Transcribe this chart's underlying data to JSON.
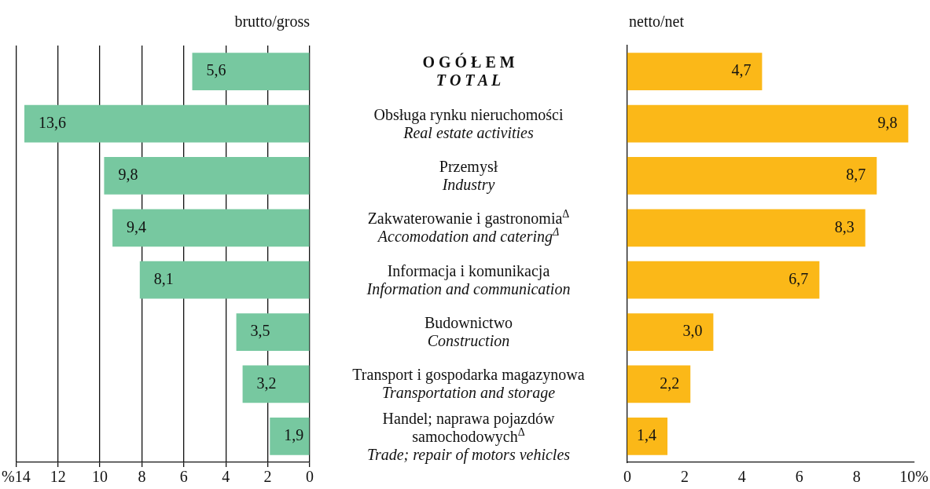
{
  "chart_data": [
    {
      "type": "bar",
      "orientation": "horizontal",
      "xlabel": "brutto/gross",
      "grid": "x",
      "color": "#77c8a0",
      "categories": [
        "O G Ó Ł E M\nT O T A L",
        "Obsługa rynku nieruchomości\nReal estate activities",
        "Przemysł\nIndustry",
        "Zakwaterowanie i gastronomia$^{Δ}$\nAccomodation and catering$^{Δ}$",
        "Informacja i komunikacja\nInformation and communication",
        "Budownictwo\nConstruction",
        "Transport i gospodarka magazynowa\nTransportation and storage",
        "Handel; naprawa pojazdów\nsamochodowych$^{Δ}$\nTrade; repair of motors vehicles"
      ],
      "values": [
        5.6,
        13.6,
        9.8,
        9.4,
        8.1,
        3.5,
        3.2,
        1.9
      ],
      "value_labels": [
        "5,6",
        "13,6",
        "9,8",
        "9,4",
        "8,1",
        "3,5",
        "3,2",
        "1,9"
      ],
      "xlim": [
        14,
        0
      ],
      "xticks": [
        {
          "value": 14,
          "label": "%14"
        },
        12,
        10,
        8,
        6,
        4,
        2,
        0
      ]
    },
    {
      "type": "bar",
      "orientation": "horizontal",
      "xlabel": "netto/net",
      "color": "#fbb818",
      "tick_labels": "x",
      "categories": [
        "O G Ó Ł E M\nT O T A L",
        "Obsługa rynku nieruchomości\nReal estate activities",
        "Przemysł\nIndustry",
        "Zakwaterowanie i gastronomia$^{Δ}$\nAccomodation and catering$^{Δ}$",
        "Informacja i komunikacja\nInformation and communication",
        "Budownictwo\nConstruction",
        "Transport i gospodarka magazynowa\nTransportation and storage",
        "Handel; naprawa pojazdów\nsamochodowych$^{Δ}$\nTrade; repair of motors vehicles"
      ],
      "values": [
        4.7,
        9.8,
        8.7,
        8.3,
        6.7,
        3.0,
        2.2,
        1.4
      ],
      "value_labels": [
        "4,7",
        "9,8",
        "8,7",
        "8,3",
        "6,7",
        "3,0",
        "2,2",
        "1,4"
      ],
      "xlim": [
        0,
        10
      ],
      "xticks": [
        0,
        2,
        4,
        6,
        8,
        {
          "value": 10,
          "label": "10%"
        }
      ]
    }
  ]
}
